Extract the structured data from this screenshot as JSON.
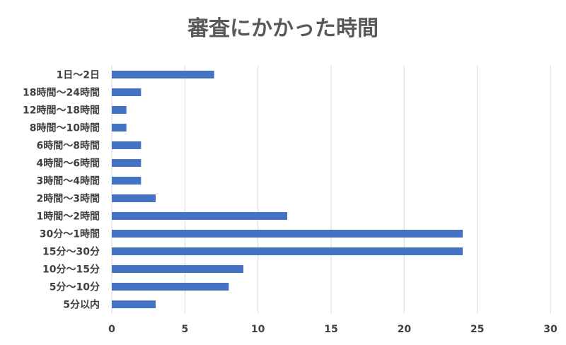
{
  "chart_data": {
    "type": "bar",
    "orientation": "horizontal",
    "title": "審査にかかった時間",
    "categories": [
      "1日〜2日",
      "18時間〜24時間",
      "12時間〜18時間",
      "8時間〜10時間",
      "6時間〜8時間",
      "4時間〜6時間",
      "3時間〜4時間",
      "2時間〜3時間",
      "1時間〜2時間",
      "30分〜1時間",
      "15分〜30分",
      "10分〜15分",
      "5分〜10分",
      "5分以内"
    ],
    "values": [
      7,
      2,
      1,
      1,
      2,
      2,
      2,
      3,
      12,
      24,
      24,
      9,
      8,
      3
    ],
    "xlim": [
      0,
      30
    ],
    "xticks": [
      "0",
      "5",
      "10",
      "15",
      "20",
      "25",
      "30"
    ],
    "grid": true,
    "bar_color": "#4472c4"
  }
}
